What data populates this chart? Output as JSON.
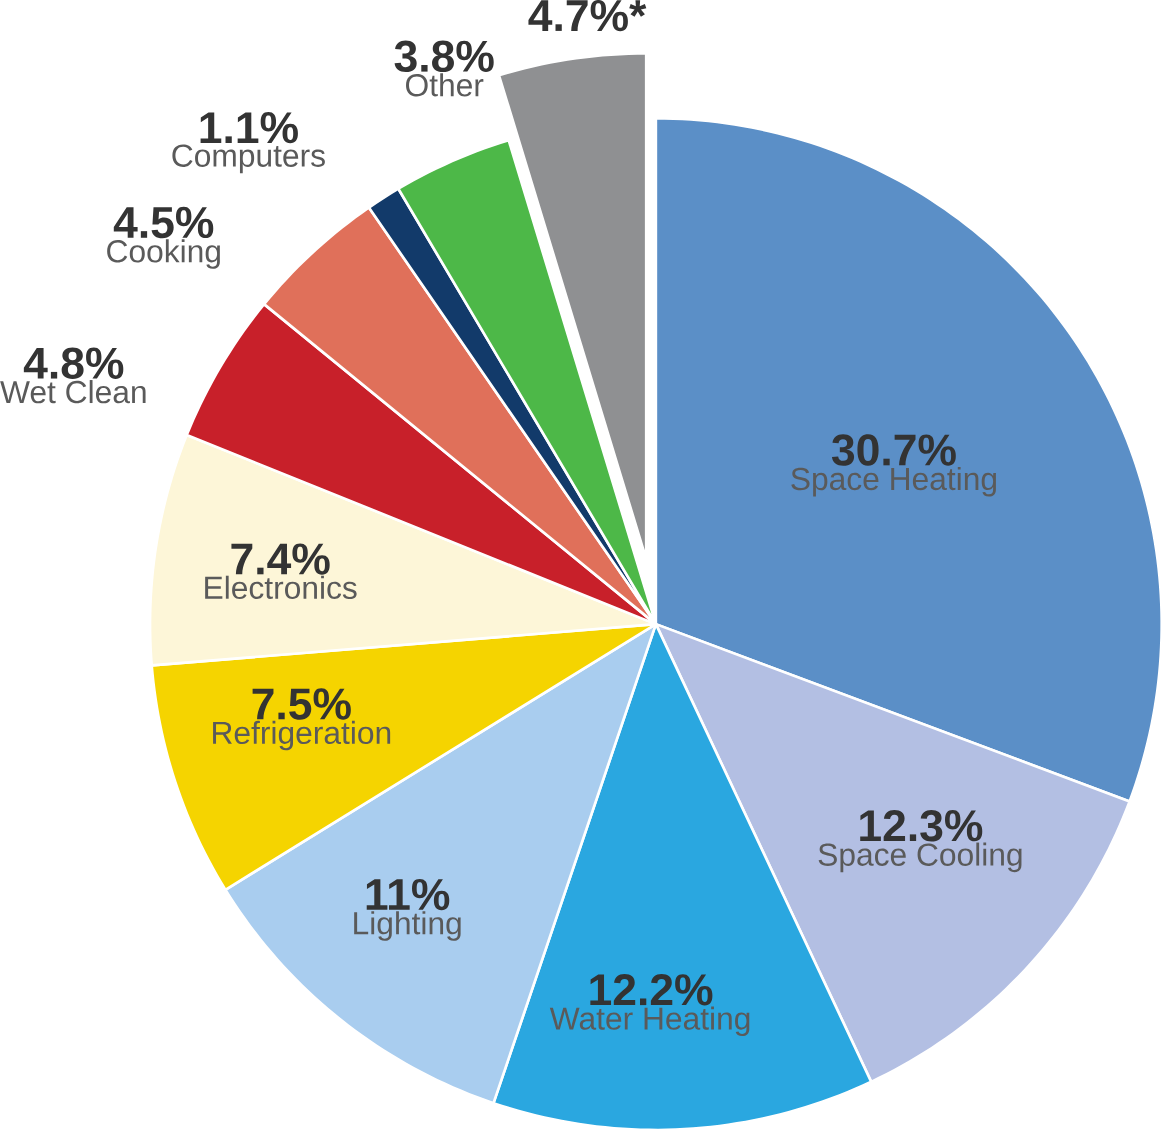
{
  "chart_data": {
    "type": "pie",
    "categories": [
      "Space Heating",
      "Space Cooling",
      "Water Heating",
      "Lighting",
      "Refrigeration",
      "Electronics",
      "Wet Clean",
      "Cooking",
      "Computers",
      "Other",
      null
    ],
    "values": [
      30.7,
      12.3,
      12.2,
      11,
      7.5,
      7.4,
      4.8,
      4.5,
      1.1,
      3.8,
      4.7
    ],
    "value_labels": [
      "30.7%",
      "12.3%",
      "12.2%",
      "11%",
      "7.5%",
      "7.4%",
      "4.8%",
      "4.5%",
      "1.1%",
      "3.8%",
      "4.7%*"
    ],
    "colors": [
      "#5b8fc7",
      "#b3bfe3",
      "#2aa7e0",
      "#a9cdef",
      "#f5d400",
      "#fdf6d8",
      "#c8202a",
      "#e0705a",
      "#123a6a",
      "#4db848",
      "#8f9092"
    ]
  }
}
